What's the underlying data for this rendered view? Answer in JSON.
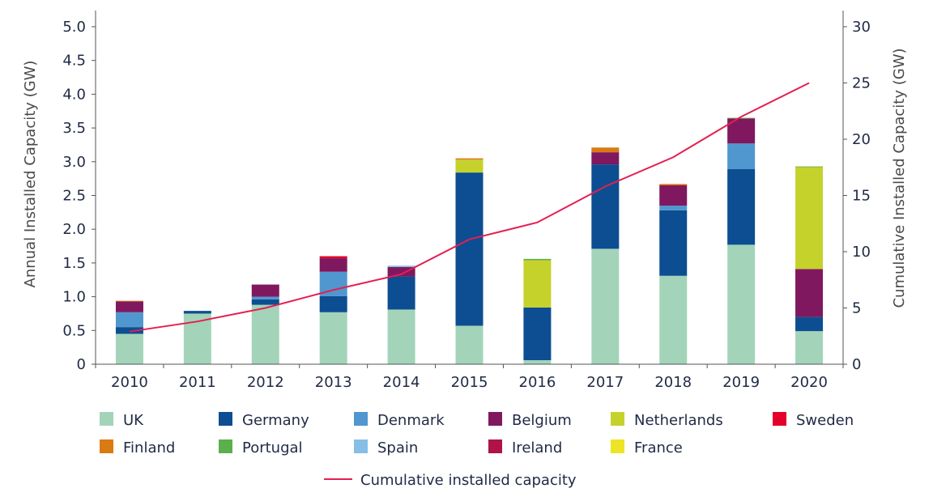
{
  "chart_data": {
    "type": "bar",
    "stacked": true,
    "categories": [
      "2010",
      "2011",
      "2012",
      "2013",
      "2014",
      "2015",
      "2016",
      "2017",
      "2018",
      "2019",
      "2020"
    ],
    "series": [
      {
        "name": "UK",
        "color": "#a3d4b9",
        "values": [
          0.45,
          0.75,
          0.88,
          0.77,
          0.81,
          0.57,
          0.06,
          1.71,
          1.31,
          1.77,
          0.49
        ]
      },
      {
        "name": "Germany",
        "color": "#0c4e91",
        "values": [
          0.1,
          0.04,
          0.08,
          0.24,
          0.49,
          2.27,
          0.78,
          1.25,
          0.97,
          1.12,
          0.21
        ]
      },
      {
        "name": "Denmark",
        "color": "#5097cf",
        "values": [
          0.22,
          0.0,
          0.04,
          0.36,
          0.0,
          0.0,
          0.0,
          0.0,
          0.07,
          0.38,
          0.0
        ]
      },
      {
        "name": "Belgium",
        "color": "#80185f",
        "values": [
          0.16,
          0.0,
          0.18,
          0.2,
          0.14,
          0.0,
          0.0,
          0.18,
          0.3,
          0.37,
          0.71
        ]
      },
      {
        "name": "Netherlands",
        "color": "#c6d22c",
        "values": [
          0.0,
          0.0,
          0.0,
          0.0,
          0.0,
          0.19,
          0.7,
          0.0,
          0.0,
          0.0,
          1.51
        ]
      },
      {
        "name": "Sweden",
        "color": "#e4002b",
        "values": [
          0.0,
          0.0,
          0.0,
          0.03,
          0.0,
          0.0,
          0.0,
          0.0,
          0.0,
          0.0,
          0.0
        ]
      },
      {
        "name": "Finland",
        "color": "#d97b12",
        "values": [
          0.01,
          0.0,
          0.0,
          0.0,
          0.0,
          0.02,
          0.0,
          0.07,
          0.02,
          0.0,
          0.0
        ]
      },
      {
        "name": "Portugal",
        "color": "#5bb04c",
        "values": [
          0.0,
          0.0,
          0.0,
          0.0,
          0.0,
          0.0,
          0.02,
          0.0,
          0.0,
          0.01,
          0.01
        ]
      },
      {
        "name": "Spain",
        "color": "#86bee6",
        "values": [
          0.0,
          0.0,
          0.0,
          0.0,
          0.02,
          0.0,
          0.0,
          0.0,
          0.0,
          0.0,
          0.0
        ]
      },
      {
        "name": "Ireland",
        "color": "#b0124a",
        "values": [
          0.0,
          0.0,
          0.0,
          0.0,
          0.0,
          0.0,
          0.0,
          0.0,
          0.0,
          0.0,
          0.0
        ]
      },
      {
        "name": "France",
        "color": "#ece425",
        "values": [
          0.0,
          0.0,
          0.0,
          0.0,
          0.0,
          0.0,
          0.0,
          0.0,
          0.0,
          0.0,
          0.0
        ]
      }
    ],
    "line": {
      "name": "Cumulative installed capacity",
      "color": "#e51e50",
      "axis": "right",
      "values": [
        2.9,
        3.8,
        5.0,
        6.6,
        8.0,
        11.1,
        12.6,
        15.8,
        18.4,
        22.0,
        25.0
      ]
    },
    "ylabel": "Annual Installed Capacity (GW)",
    "y2label": "Cumulative Installed Capacity (GW)",
    "ylim": [
      0,
      5.0
    ],
    "y2lim": [
      0,
      30
    ],
    "yticks": [
      "0",
      "0.5",
      "1.0",
      "1.5",
      "2.0",
      "2.5",
      "3.0",
      "3.5",
      "4.0",
      "4.5",
      "5.0"
    ],
    "y2ticks": [
      "0",
      "5",
      "10",
      "15",
      "20",
      "25",
      "30"
    ],
    "legend_position": "bottom"
  }
}
